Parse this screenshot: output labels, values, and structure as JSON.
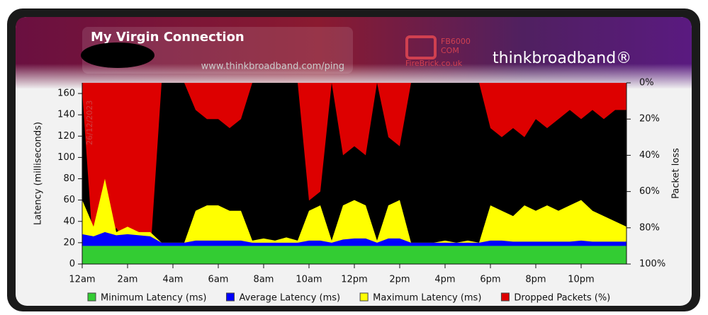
{
  "chart_data": {
    "type": "area",
    "title": "My Virgin Connection",
    "subtitle": "www.thinkbroadband.com/ping",
    "annotation": "26/12/2023",
    "logos": [
      "FB6000",
      "COM",
      "FireBrick.co.uk",
      "thinkbroadband®"
    ],
    "y_label": "Latency (milliseconds)",
    "y2_label": "Packet loss",
    "x": [
      0,
      0.5,
      1,
      1.5,
      2,
      2.5,
      3,
      3.5,
      4,
      4.5,
      5,
      5.5,
      6,
      6.5,
      7,
      7.5,
      8,
      8.5,
      9,
      9.5,
      10,
      10.5,
      11,
      11.5,
      12,
      12.5,
      13,
      13.5,
      14,
      14.5,
      15,
      15.5,
      16,
      16.5,
      17,
      17.5,
      18,
      18.5,
      19,
      19.5,
      20,
      20.5,
      21,
      21.5,
      22,
      22.5,
      23,
      23.5,
      24
    ],
    "xlim": [
      0,
      24
    ],
    "xticks": [
      {
        "value": 0,
        "label": "12am"
      },
      {
        "value": 2,
        "label": "2am"
      },
      {
        "value": 4,
        "label": "4am"
      },
      {
        "value": 6,
        "label": "6am"
      },
      {
        "value": 8,
        "label": "8am"
      },
      {
        "value": 10,
        "label": "10am"
      },
      {
        "value": 12,
        "label": "12pm"
      },
      {
        "value": 14,
        "label": "2pm"
      },
      {
        "value": 16,
        "label": "4pm"
      },
      {
        "value": 18,
        "label": "6pm"
      },
      {
        "value": 20,
        "label": "8pm"
      },
      {
        "value": 22,
        "label": "10pm"
      }
    ],
    "ylim": [
      0,
      170
    ],
    "yticks": [
      0,
      20,
      40,
      60,
      80,
      100,
      120,
      140,
      160
    ],
    "y2lim": [
      100,
      0
    ],
    "y2ticks": [
      {
        "value": 0,
        "label": "0%"
      },
      {
        "value": 20,
        "label": "20%"
      },
      {
        "value": 40,
        "label": "40%"
      },
      {
        "value": 60,
        "label": "60%"
      },
      {
        "value": 80,
        "label": "80%"
      },
      {
        "value": 100,
        "label": "100%"
      }
    ],
    "series": [
      {
        "name": "Dropped Packets (%)",
        "color": "#dd0000",
        "axis": "y2",
        "values": [
          5,
          95,
          95,
          80,
          90,
          95,
          95,
          0,
          0,
          0,
          15,
          20,
          20,
          25,
          20,
          0,
          0,
          0,
          0,
          0,
          65,
          60,
          0,
          40,
          35,
          40,
          0,
          30,
          35,
          0,
          0,
          0,
          0,
          0,
          0,
          0,
          25,
          30,
          25,
          30,
          20,
          25,
          20,
          15,
          20,
          15,
          20,
          15,
          15
        ]
      },
      {
        "name": "Maximum Latency (ms)",
        "color": "#ffff00",
        "values": [
          60,
          35,
          80,
          30,
          35,
          30,
          30,
          20,
          20,
          20,
          50,
          55,
          55,
          50,
          50,
          22,
          24,
          22,
          25,
          22,
          50,
          55,
          22,
          55,
          60,
          55,
          22,
          55,
          60,
          20,
          20,
          20,
          22,
          20,
          22,
          20,
          55,
          50,
          45,
          55,
          50,
          55,
          50,
          55,
          60,
          50,
          45,
          40,
          35
        ]
      },
      {
        "name": "Average Latency (ms)",
        "color": "#0000ff",
        "values": [
          28,
          26,
          30,
          27,
          28,
          27,
          26,
          20,
          20,
          20,
          22,
          22,
          22,
          22,
          22,
          20,
          20,
          20,
          20,
          20,
          22,
          22,
          20,
          23,
          24,
          24,
          20,
          24,
          24,
          20,
          20,
          20,
          20,
          20,
          20,
          20,
          22,
          22,
          21,
          21,
          21,
          21,
          21,
          21,
          22,
          21,
          21,
          21,
          21
        ]
      },
      {
        "name": "Minimum Latency (ms)",
        "color": "#33cc33",
        "values": [
          17,
          17,
          17,
          17,
          17,
          17,
          17,
          17,
          17,
          17,
          17,
          17,
          17,
          17,
          17,
          17,
          17,
          17,
          17,
          17,
          17,
          17,
          17,
          17,
          17,
          17,
          17,
          17,
          17,
          17,
          17,
          17,
          17,
          17,
          17,
          17,
          17,
          17,
          17,
          17,
          17,
          17,
          17,
          17,
          17,
          17,
          17,
          17,
          17
        ]
      }
    ]
  }
}
